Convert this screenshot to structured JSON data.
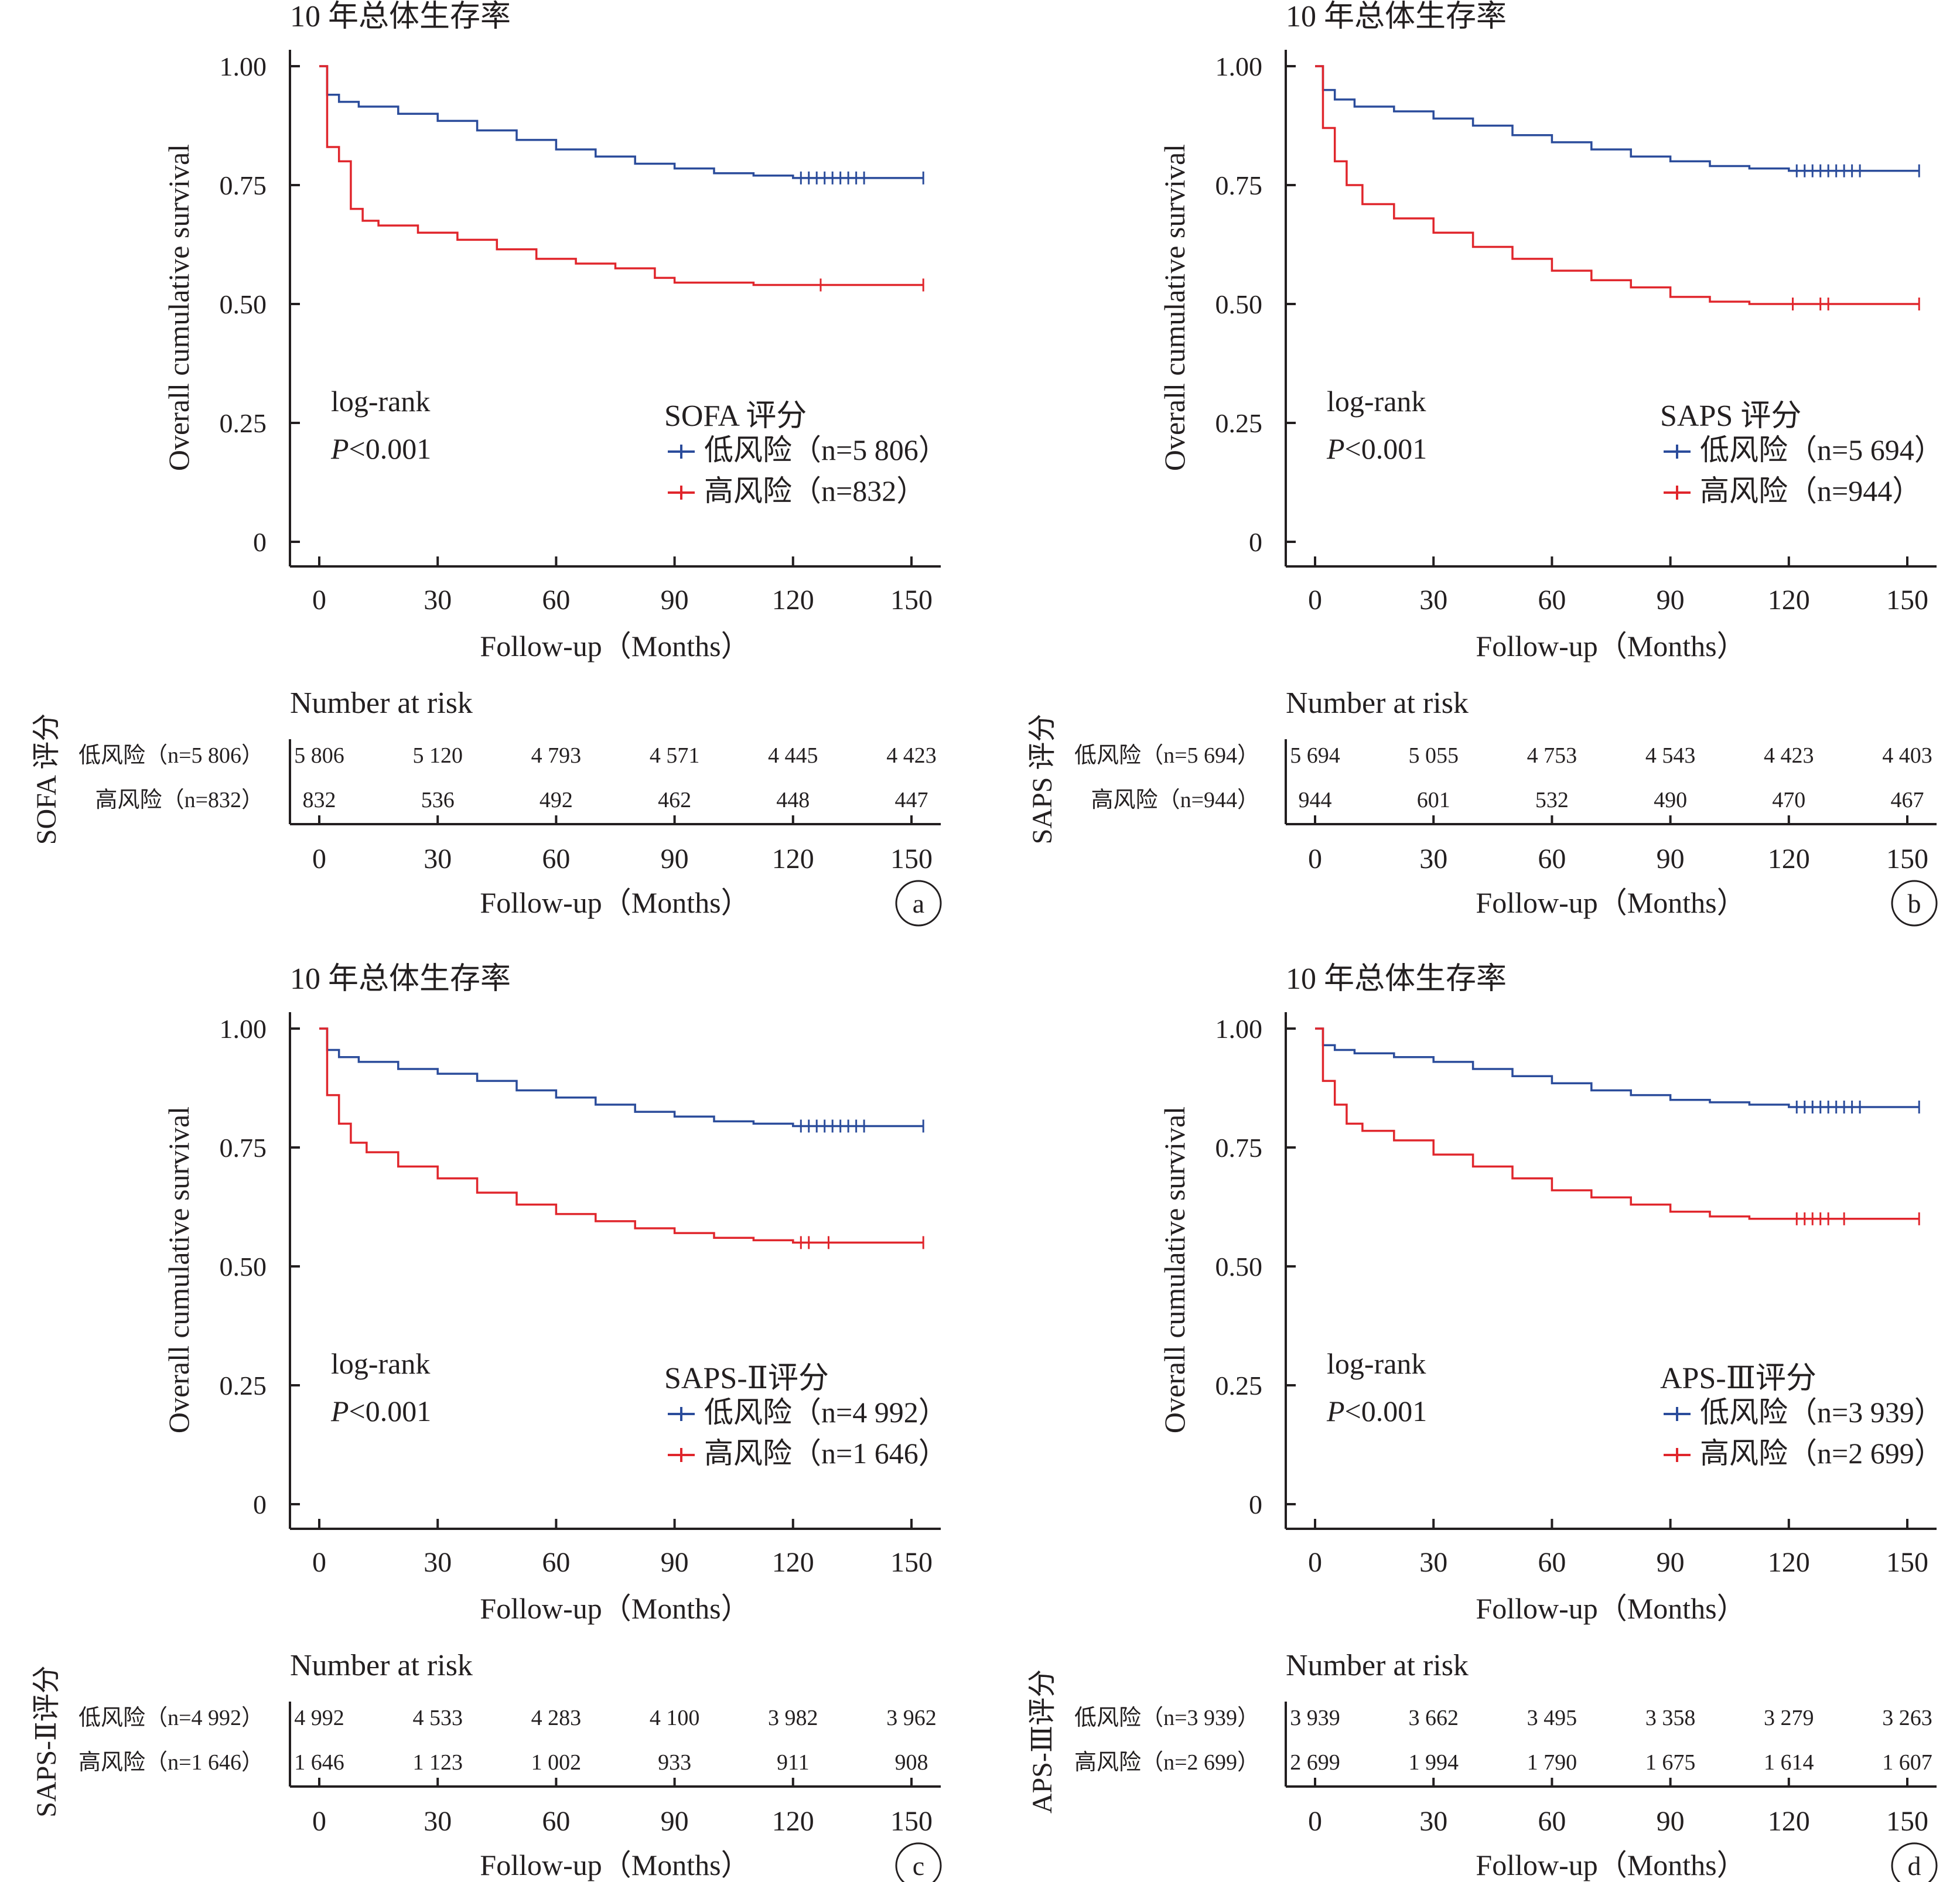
{
  "colors": {
    "low": "#2b4c9b",
    "high": "#e0262c",
    "axis": "#231f20"
  },
  "common": {
    "panel_title": "10 年总体生存率",
    "ylabel": "Overall cumulative survival",
    "xlabel_main": "Follow-up（Months）",
    "yticks": [
      "1.00",
      "0.75",
      "0.50",
      "0.25",
      "0"
    ],
    "xticks": [
      "0",
      "30",
      "60",
      "90",
      "120",
      "150"
    ],
    "logrank": "log-rank",
    "p_letter": "P",
    "p_value": "<0.001",
    "risk_title": "Number at risk",
    "risk_xlabel": "Follow-up（Months）",
    "low_label": "低风险",
    "high_label": "高风险",
    "n_letter": "n"
  },
  "chart_data": [
    {
      "type": "line",
      "panel_letter": "a",
      "legend_title": "SOFA 评分",
      "score_label": "SOFA 评分",
      "legend_low": "（n=5 806）",
      "legend_high": "（n=832）",
      "risk_low_label": "（n=5 806）",
      "risk_high_label": "（n=832）",
      "xlim": [
        0,
        155
      ],
      "ylim": [
        0,
        1
      ],
      "series": [
        {
          "name": "低风险（n=5 806）",
          "x": [
            0,
            2,
            5,
            10,
            20,
            30,
            40,
            50,
            60,
            70,
            80,
            90,
            100,
            110,
            120,
            153
          ],
          "y": [
            1.0,
            0.94,
            0.925,
            0.915,
            0.9,
            0.885,
            0.865,
            0.845,
            0.825,
            0.81,
            0.795,
            0.785,
            0.775,
            0.77,
            0.765,
            0.765
          ],
          "censor": [
            122,
            124,
            126,
            128,
            130,
            132,
            134,
            136,
            138,
            153
          ]
        },
        {
          "name": "高风险（n=832）",
          "x": [
            0,
            2,
            5,
            8,
            11,
            15,
            25,
            35,
            45,
            55,
            65,
            75,
            85,
            90,
            100,
            110,
            120,
            153
          ],
          "y": [
            1.0,
            0.83,
            0.8,
            0.7,
            0.675,
            0.665,
            0.65,
            0.635,
            0.615,
            0.595,
            0.585,
            0.575,
            0.555,
            0.545,
            0.545,
            0.54,
            0.54,
            0.54
          ],
          "censor": [
            127,
            153
          ]
        }
      ],
      "risk_low": [
        "5 806",
        "5 120",
        "4 793",
        "4 571",
        "4 445",
        "4 423"
      ],
      "risk_high": [
        "832",
        "536",
        "492",
        "462",
        "448",
        "447"
      ]
    },
    {
      "type": "line",
      "panel_letter": "b",
      "legend_title": "SAPS 评分",
      "score_label": "SAPS 评分",
      "legend_low": "（n=5 694）",
      "legend_high": "（n=944）",
      "risk_low_label": "（n=5 694）",
      "risk_high_label": "（n=944）",
      "xlim": [
        0,
        155
      ],
      "ylim": [
        0,
        1
      ],
      "series": [
        {
          "name": "低风险（n=5 694）",
          "x": [
            0,
            2,
            5,
            10,
            20,
            30,
            40,
            50,
            60,
            70,
            80,
            90,
            100,
            110,
            120,
            153
          ],
          "y": [
            1.0,
            0.95,
            0.93,
            0.915,
            0.905,
            0.89,
            0.875,
            0.855,
            0.84,
            0.825,
            0.81,
            0.8,
            0.79,
            0.785,
            0.78,
            0.78
          ],
          "censor": [
            122,
            124,
            126,
            128,
            130,
            132,
            134,
            136,
            138,
            153
          ]
        },
        {
          "name": "高风险（n=944）",
          "x": [
            0,
            2,
            5,
            8,
            12,
            20,
            30,
            40,
            50,
            60,
            70,
            80,
            90,
            100,
            110,
            120,
            153
          ],
          "y": [
            1.0,
            0.87,
            0.8,
            0.75,
            0.71,
            0.68,
            0.65,
            0.62,
            0.595,
            0.57,
            0.55,
            0.535,
            0.515,
            0.505,
            0.5,
            0.5,
            0.5
          ],
          "censor": [
            121,
            128,
            130,
            153
          ]
        }
      ],
      "risk_low": [
        "5 694",
        "5 055",
        "4 753",
        "4 543",
        "4 423",
        "4 403"
      ],
      "risk_high": [
        "944",
        "601",
        "532",
        "490",
        "470",
        "467"
      ]
    },
    {
      "type": "line",
      "panel_letter": "c",
      "legend_title": "SAPS-Ⅱ评分",
      "score_label": "SAPS-Ⅱ评分",
      "legend_low": "（n=4 992）",
      "legend_high": "（n=1 646）",
      "risk_low_label": "（n=4 992）",
      "risk_high_label": "（n=1 646）",
      "xlim": [
        0,
        155
      ],
      "ylim": [
        0,
        1
      ],
      "series": [
        {
          "name": "低风险（n=4 992）",
          "x": [
            0,
            2,
            5,
            10,
            20,
            30,
            40,
            50,
            60,
            70,
            80,
            90,
            100,
            110,
            120,
            153
          ],
          "y": [
            1.0,
            0.955,
            0.94,
            0.93,
            0.915,
            0.905,
            0.89,
            0.87,
            0.855,
            0.84,
            0.825,
            0.815,
            0.805,
            0.8,
            0.795,
            0.795
          ],
          "censor": [
            122,
            124,
            126,
            128,
            130,
            132,
            134,
            136,
            138,
            153
          ]
        },
        {
          "name": "高风险（n=1 646）",
          "x": [
            0,
            2,
            5,
            8,
            12,
            20,
            30,
            40,
            50,
            60,
            70,
            80,
            90,
            100,
            110,
            120,
            153
          ],
          "y": [
            1.0,
            0.86,
            0.8,
            0.76,
            0.74,
            0.71,
            0.685,
            0.655,
            0.63,
            0.61,
            0.595,
            0.58,
            0.57,
            0.56,
            0.555,
            0.55,
            0.55
          ],
          "censor": [
            122,
            124,
            129,
            153
          ]
        }
      ],
      "risk_low": [
        "4 992",
        "4 533",
        "4 283",
        "4 100",
        "3 982",
        "3 962"
      ],
      "risk_high": [
        "1 646",
        "1 123",
        "1 002",
        "933",
        "911",
        "908"
      ]
    },
    {
      "type": "line",
      "panel_letter": "d",
      "legend_title": "APS-Ⅲ评分",
      "score_label": "APS-Ⅲ评分",
      "legend_low": "（n=3 939）",
      "legend_high": "（n=2 699）",
      "risk_low_label": "（n=3 939）",
      "risk_high_label": "（n=2 699）",
      "xlim": [
        0,
        155
      ],
      "ylim": [
        0,
        1
      ],
      "series": [
        {
          "name": "低风险（n=3 939）",
          "x": [
            0,
            2,
            5,
            10,
            20,
            30,
            40,
            50,
            60,
            70,
            80,
            90,
            100,
            110,
            120,
            153
          ],
          "y": [
            1.0,
            0.965,
            0.955,
            0.948,
            0.94,
            0.93,
            0.915,
            0.9,
            0.885,
            0.87,
            0.86,
            0.85,
            0.845,
            0.84,
            0.835,
            0.835
          ],
          "censor": [
            122,
            124,
            126,
            128,
            130,
            132,
            134,
            136,
            138,
            153
          ]
        },
        {
          "name": "高风险（n=2 699）",
          "x": [
            0,
            2,
            5,
            8,
            12,
            20,
            30,
            40,
            50,
            60,
            70,
            80,
            90,
            100,
            110,
            120,
            153
          ],
          "y": [
            1.0,
            0.89,
            0.84,
            0.8,
            0.785,
            0.765,
            0.735,
            0.71,
            0.685,
            0.66,
            0.645,
            0.63,
            0.615,
            0.605,
            0.6,
            0.6,
            0.6
          ],
          "censor": [
            122,
            124,
            126,
            128,
            130,
            134,
            153
          ]
        }
      ],
      "risk_low": [
        "3 939",
        "3 662",
        "3 495",
        "3 358",
        "3 279",
        "3 263"
      ],
      "risk_high": [
        "2 699",
        "1 994",
        "1 790",
        "1 675",
        "1 614",
        "1 607"
      ]
    }
  ]
}
